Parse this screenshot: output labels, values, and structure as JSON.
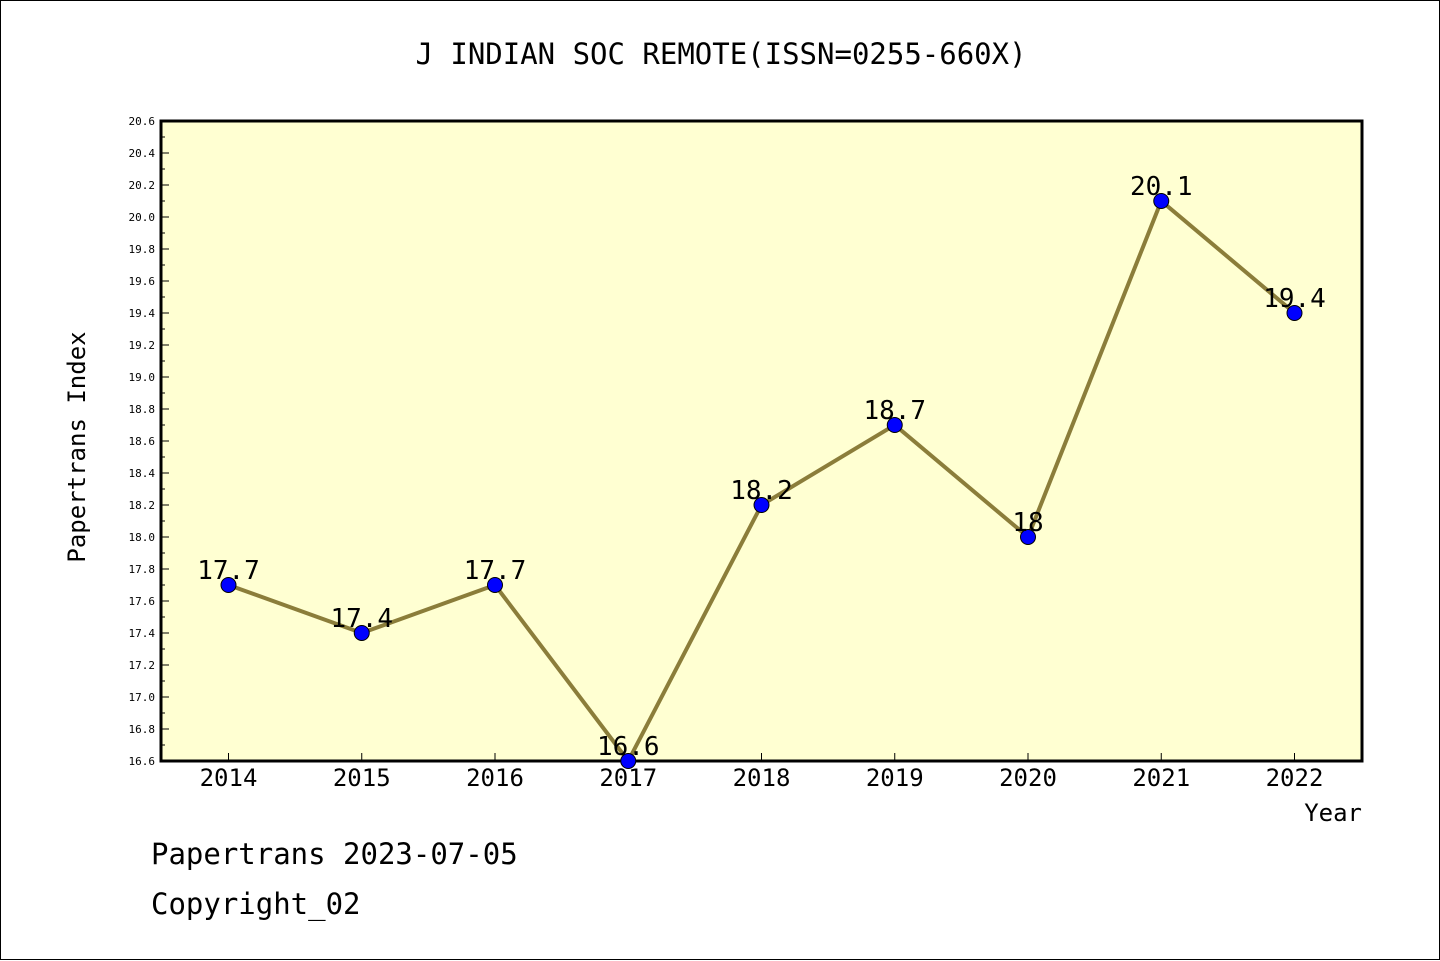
{
  "chart_data": {
    "type": "line",
    "title": "J INDIAN SOC REMOTE(ISSN=0255-660X)",
    "xlabel": "Year",
    "ylabel": "Papertrans Index",
    "categories": [
      "2014",
      "2015",
      "2016",
      "2017",
      "2018",
      "2019",
      "2020",
      "2021",
      "2022"
    ],
    "values": [
      17.7,
      17.4,
      17.7,
      16.6,
      18.2,
      18.7,
      18.0,
      20.1,
      19.4
    ],
    "data_labels": [
      "17.7",
      "17.4",
      "17.7",
      "16.6",
      "18.2",
      "18.7",
      "18",
      "20.1",
      "19.4"
    ],
    "ylim": [
      16.6,
      20.6
    ],
    "yticks": [
      "16.6",
      "16.8",
      "17.0",
      "17.2",
      "17.4",
      "17.6",
      "17.8",
      "18.0",
      "18.2",
      "18.4",
      "18.6",
      "18.8",
      "19.0",
      "19.2",
      "19.4",
      "19.6",
      "19.8",
      "20.0",
      "20.2",
      "20.4",
      "20.6"
    ],
    "grid": false,
    "line_color": "#8b7d3a",
    "marker_color": "#0000ff",
    "plot_background": "#ffffd2"
  },
  "footer": {
    "line1": "Papertrans 2023-07-05",
    "line2": "Copyright_02"
  }
}
